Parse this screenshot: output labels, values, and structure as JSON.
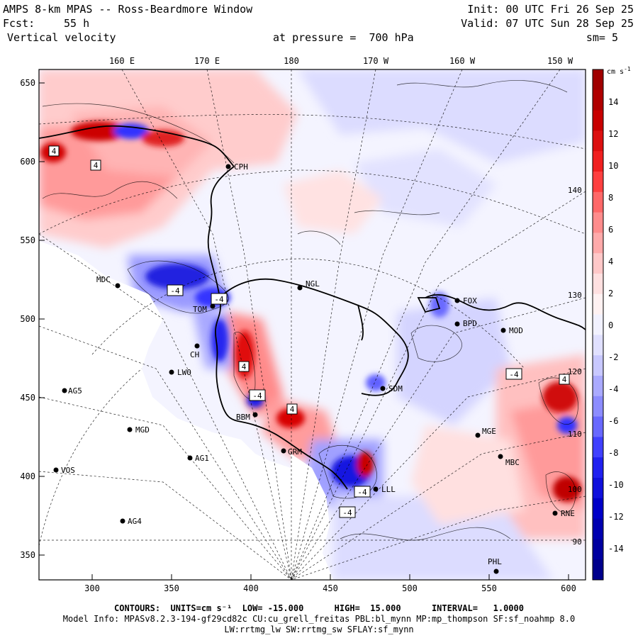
{
  "header": {
    "title": "AMPS 8-km MPAS -- Ross-Beardmore Window",
    "forecast_label": "Fcst:",
    "forecast_value": "55 h",
    "field_name": "Vertical velocity",
    "pressure_text": "at pressure =  700 hPa",
    "init_text": "Init: 00 UTC Fri 26 Sep 25",
    "valid_text": "Valid: 07 UTC Sun 28 Sep 25",
    "smoothing_text": "sm= 5"
  },
  "map": {
    "x_ticks": [
      "300",
      "350",
      "400",
      "450",
      "500",
      "550",
      "600"
    ],
    "y_ticks": [
      "650",
      "600",
      "550",
      "500",
      "450",
      "400",
      "350"
    ],
    "longitude_labels": [
      "160 E",
      "170 E",
      "180",
      "170 W",
      "160 W",
      "150 W"
    ],
    "edge_longitude_labels": [
      "140 W",
      "130 W",
      "120 W",
      "110 W",
      "100 W",
      "90 W"
    ],
    "box_labels": [
      "4",
      "4",
      "-4",
      "-4",
      "4",
      "-4",
      "4",
      "-4",
      "4",
      "-4",
      "-4"
    ],
    "stations": [
      "CPH",
      "MDC",
      "NGL",
      "FOX",
      "BPD",
      "MOD",
      "TOM",
      "LWO",
      "AG5",
      "MGD",
      "SDM",
      "BBM",
      "GRM",
      "AG1",
      "VOS",
      "MGE",
      "AG4",
      "MBC",
      "RNE",
      "PHL",
      "CH",
      "LLL"
    ]
  },
  "colorbar": {
    "units": "cm s",
    "units_exp": "-1",
    "tick_labels": [
      "14",
      "12",
      "10",
      "8",
      "6",
      "4",
      "2",
      "0",
      "-2",
      "-4",
      "-6",
      "-8",
      "-10",
      "-12",
      "-14"
    ],
    "colors": [
      "#a00000",
      "#b00000",
      "#c80000",
      "#dc1010",
      "#f02020",
      "#ff4040",
      "#ff6868",
      "#ff8c8c",
      "#ffaaaa",
      "#ffc8c8",
      "#ffe0e0",
      "#fff2f2",
      "#f2f2ff",
      "#e0e0ff",
      "#c8c8ff",
      "#aaaaff",
      "#8c8cff",
      "#6868ff",
      "#4040ff",
      "#2020f0",
      "#1010dc",
      "#0000c8",
      "#0000b0",
      "#0000a0",
      "#00008c"
    ]
  },
  "footer": {
    "contours_line": "CONTOURS:  UNITS=cm s⁻¹  LOW= -15.000      HIGH=  15.000      INTERVAL=   1.0000",
    "model_info": "Model Info: MPASv8.2.3-194-gf29cd82c CU:cu_grell_freitas PBL:bl_mynn MP:mp_thompson SF:sf_noahmp 8.0",
    "physics": "LW:rrtmg_lw SW:rrtmg_sw SFLAY:sf_mynn"
  },
  "colors": {
    "positive": "#ff8c8c",
    "negative": "#8c8cff",
    "neutral": "#f4f4ff",
    "missing": "#ffffff"
  }
}
